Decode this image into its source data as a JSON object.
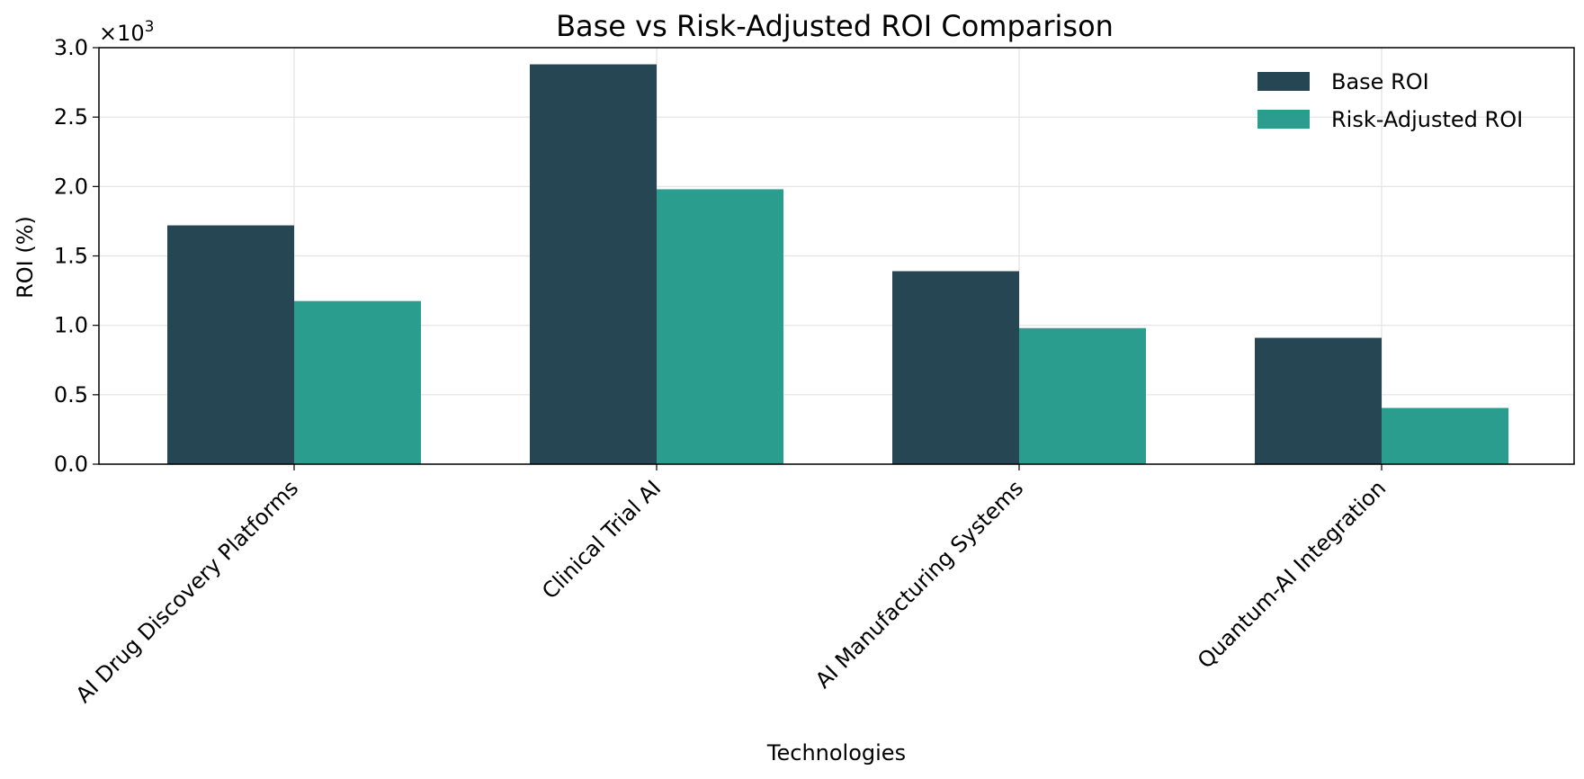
{
  "chart_data": {
    "type": "bar",
    "title": "Base vs Risk-Adjusted ROI Comparison",
    "xlabel": "Technologies",
    "ylabel": "ROI (%)",
    "y_multiplier_label": "×10",
    "y_multiplier_exponent": "3",
    "categories": [
      "AI Drug Discovery Platforms",
      "Clinical Trial AI",
      "AI Manufacturing Systems",
      "Quantum-AI Integration"
    ],
    "series": [
      {
        "name": "Base ROI",
        "values": [
          1720,
          2880,
          1390,
          910
        ],
        "color": "#264653"
      },
      {
        "name": "Risk-Adjusted ROI",
        "values": [
          1175,
          1980,
          980,
          405
        ],
        "color": "#2a9d8f"
      }
    ],
    "ylim": [
      0,
      3000
    ],
    "yticks": [
      "0.0",
      "0.5",
      "1.0",
      "1.5",
      "2.0",
      "2.5",
      "3.0"
    ],
    "ytick_values": [
      0,
      500,
      1000,
      1500,
      2000,
      2500,
      3000
    ],
    "grid": true,
    "legend_position": "top-right"
  }
}
